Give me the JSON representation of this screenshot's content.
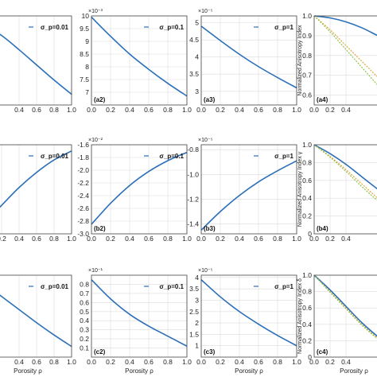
{
  "chart_data": [
    {
      "id": "a1",
      "type": "line",
      "label": "",
      "legend": "σ_p=0.01",
      "multiplier": "",
      "xlabel": "",
      "ylabel": "",
      "xlim": [
        0,
        1
      ],
      "ylim": [
        0,
        1
      ],
      "xticks": [
        "0.4",
        "0.6",
        "0.8",
        "1.0"
      ],
      "yticks": [],
      "series": [
        {
          "color": "#2a6fb8",
          "x": [
            0,
            0.2,
            0.4,
            0.6,
            0.8,
            1.0
          ],
          "y": [
            0.9,
            0.78,
            0.62,
            0.45,
            0.28,
            0.12
          ]
        }
      ]
    },
    {
      "id": "a2",
      "type": "line",
      "label": "(a2)",
      "legend": "σ_p=0.1",
      "multiplier": "×10⁻³",
      "xlabel": "",
      "ylabel": "",
      "xlim": [
        0,
        1
      ],
      "ylim": [
        6.5,
        10
      ],
      "xticks": [
        "0.0",
        "0.2",
        "0.4",
        "0.6",
        "0.8",
        "1.0"
      ],
      "yticks": [
        "7",
        "7.5",
        "8",
        "8.5",
        "9",
        "9.5",
        "10"
      ],
      "series": [
        {
          "color": "#2a6fb8",
          "x": [
            0,
            0.2,
            0.4,
            0.6,
            0.8,
            1.0
          ],
          "y": [
            9.95,
            9.2,
            8.5,
            7.9,
            7.35,
            6.85
          ]
        }
      ]
    },
    {
      "id": "a3",
      "type": "line",
      "label": "(a3)",
      "legend": "σ_p=1",
      "multiplier": "×10⁻⁵",
      "xlabel": "",
      "ylabel": "",
      "xlim": [
        0,
        1
      ],
      "ylim": [
        2.6,
        5.2
      ],
      "xticks": [
        "0.0",
        "0.2",
        "0.4",
        "0.6",
        "0.8",
        "1.0"
      ],
      "yticks": [
        "3",
        "3.5",
        "4",
        "4.5",
        "5"
      ],
      "series": [
        {
          "color": "#2a6fb8",
          "x": [
            0,
            0.2,
            0.4,
            0.6,
            0.8,
            1.0
          ],
          "y": [
            4.9,
            4.48,
            4.08,
            3.72,
            3.4,
            3.1
          ]
        }
      ]
    },
    {
      "id": "a4",
      "type": "line",
      "label": "(a4)",
      "legend": "",
      "multiplier": "",
      "xlabel": "",
      "ylabel": "Normalized Anisotropy Index",
      "xlim": [
        0,
        1
      ],
      "ylim": [
        0.55,
        1.0
      ],
      "xticks": [
        "0.0",
        "0.2",
        "0.4"
      ],
      "yticks": [
        "0.6",
        "0.7",
        "0.8",
        "0.9",
        "1.0"
      ],
      "series": [
        {
          "color": "#2a6fb8",
          "x": [
            0,
            0.2,
            0.4,
            0.6,
            0.8,
            1.0
          ],
          "y": [
            1.0,
            0.99,
            0.97,
            0.94,
            0.9,
            0.86
          ]
        },
        {
          "color": "#e0a030",
          "x": [
            0,
            0.2,
            0.4,
            0.6,
            0.8,
            1.0
          ],
          "y": [
            1.0,
            0.93,
            0.85,
            0.77,
            0.69,
            0.61
          ]
        },
        {
          "color": "#8ac040",
          "x": [
            0,
            0.2,
            0.4,
            0.6,
            0.8,
            1.0
          ],
          "y": [
            1.0,
            0.92,
            0.83,
            0.74,
            0.65,
            0.57
          ]
        }
      ]
    },
    {
      "id": "b1",
      "type": "line",
      "label": "",
      "legend": "σ_p=0.01",
      "multiplier": "",
      "xlabel": "",
      "ylabel": "",
      "xlim": [
        0,
        1
      ],
      "ylim": [
        0,
        1
      ],
      "xticks": [
        "0.2",
        "0.4",
        "0.6",
        "0.8",
        "1.0"
      ],
      "yticks": [],
      "series": [
        {
          "color": "#2a6fb8",
          "x": [
            0,
            0.2,
            0.4,
            0.6,
            0.8,
            1.0
          ],
          "y": [
            0.12,
            0.32,
            0.52,
            0.69,
            0.83,
            0.93
          ]
        }
      ]
    },
    {
      "id": "b2",
      "type": "line",
      "label": "(b2)",
      "legend": "σ_p=0.1",
      "multiplier": "×10⁻²",
      "xlabel": "",
      "ylabel": "",
      "xlim": [
        0,
        1
      ],
      "ylim": [
        -3.0,
        -1.6
      ],
      "xticks": [
        "0.0",
        "0.2",
        "0.4",
        "0.6",
        "0.8",
        "1.0"
      ],
      "yticks": [
        "-3.0",
        "-2.8",
        "-2.6",
        "-2.4",
        "-2.2",
        "-2.0",
        "-1.8",
        "-1.6"
      ],
      "series": [
        {
          "color": "#2a6fb8",
          "x": [
            0,
            0.2,
            0.4,
            0.6,
            0.8,
            1.0
          ],
          "y": [
            -2.85,
            -2.52,
            -2.24,
            -2.02,
            -1.85,
            -1.72
          ]
        }
      ]
    },
    {
      "id": "b3",
      "type": "line",
      "label": "(b3)",
      "legend": "σ_p=1",
      "multiplier": "×10⁻⁵",
      "xlabel": "",
      "ylabel": "",
      "xlim": [
        0,
        1
      ],
      "ylim": [
        -1.48,
        -0.76
      ],
      "xticks": [
        "0.0",
        "0.2",
        "0.4",
        "0.6",
        "0.8",
        "1.0"
      ],
      "yticks": [
        "-1.4",
        "-1.2",
        "-1.0",
        "-0.8"
      ],
      "series": [
        {
          "color": "#2a6fb8",
          "x": [
            0,
            0.2,
            0.4,
            0.6,
            0.8,
            1.0
          ],
          "y": [
            -1.45,
            -1.3,
            -1.17,
            -1.06,
            -0.97,
            -0.89
          ]
        }
      ]
    },
    {
      "id": "b4",
      "type": "line",
      "label": "(b4)",
      "legend": "",
      "multiplier": "",
      "xlabel": "",
      "ylabel": "Normalized Anisotropy Index γ",
      "xlim": [
        0,
        1
      ],
      "ylim": [
        0,
        1.0
      ],
      "xticks": [
        "0.0",
        "0.2",
        "0.4"
      ],
      "yticks": [
        "0",
        "0.2",
        "0.4",
        "0.6",
        "0.8",
        "1.0"
      ],
      "series": [
        {
          "color": "#2a6fb8",
          "x": [
            0,
            0.2,
            0.4,
            0.6,
            0.8,
            1.0
          ],
          "y": [
            1.0,
            0.9,
            0.78,
            0.64,
            0.5,
            0.36
          ]
        },
        {
          "color": "#e0a030",
          "x": [
            0,
            0.2,
            0.4,
            0.6,
            0.8,
            1.0
          ],
          "y": [
            1.0,
            0.87,
            0.72,
            0.56,
            0.4,
            0.25
          ]
        },
        {
          "color": "#8ac040",
          "x": [
            0,
            0.2,
            0.4,
            0.6,
            0.8,
            1.0
          ],
          "y": [
            1.0,
            0.86,
            0.7,
            0.53,
            0.37,
            0.22
          ]
        }
      ]
    },
    {
      "id": "c1",
      "type": "line",
      "label": "",
      "legend": "σ_p=0.01",
      "multiplier": "",
      "xlabel": "Porosity ρ",
      "ylabel": "",
      "xlim": [
        0,
        1
      ],
      "ylim": [
        0,
        1
      ],
      "xticks": [
        "0.4",
        "0.6",
        "0.8",
        "1.0"
      ],
      "yticks": [],
      "series": [
        {
          "color": "#2a6fb8",
          "x": [
            0,
            0.2,
            0.4,
            0.6,
            0.8,
            1.0
          ],
          "y": [
            0.9,
            0.74,
            0.58,
            0.42,
            0.27,
            0.13
          ]
        }
      ]
    },
    {
      "id": "c2",
      "type": "line",
      "label": "(c2)",
      "legend": "σ_p=0.1",
      "multiplier": "×10⁻¹",
      "xlabel": "Porosity ρ",
      "ylabel": "",
      "xlim": [
        0,
        1
      ],
      "ylim": [
        0.0,
        0.9
      ],
      "xticks": [
        "0.0",
        "0.2",
        "0.4",
        "0.6",
        "0.8",
        "1.0"
      ],
      "yticks": [
        "0.1",
        "0.2",
        "0.3",
        "0.4",
        "0.5",
        "0.6",
        "0.7",
        "0.8"
      ],
      "series": [
        {
          "color": "#2a6fb8",
          "x": [
            0,
            0.2,
            0.4,
            0.6,
            0.8,
            1.0
          ],
          "y": [
            0.85,
            0.64,
            0.47,
            0.34,
            0.23,
            0.12
          ]
        }
      ]
    },
    {
      "id": "c3",
      "type": "line",
      "label": "(c3)",
      "legend": "σ_p=1",
      "multiplier": "×10⁻⁵",
      "xlabel": "Porosity ρ",
      "ylabel": "",
      "xlim": [
        0,
        1
      ],
      "ylim": [
        0.5,
        4.1
      ],
      "xticks": [
        "0.0",
        "0.2",
        "0.4",
        "0.6",
        "0.8",
        "1.0"
      ],
      "yticks": [
        "1",
        "1.5",
        "2",
        "2.5",
        "3",
        "3.5",
        "4"
      ],
      "series": [
        {
          "color": "#2a6fb8",
          "x": [
            0,
            0.2,
            0.4,
            0.6,
            0.8,
            1.0
          ],
          "y": [
            3.9,
            3.15,
            2.5,
            1.95,
            1.45,
            1.0
          ]
        }
      ]
    },
    {
      "id": "c4",
      "type": "line",
      "label": "(c4)",
      "legend": "",
      "multiplier": "",
      "xlabel": "Porosity ρ",
      "ylabel": "Normalized Anisotropy Index δ",
      "xlim": [
        0,
        1
      ],
      "ylim": [
        0,
        1.0
      ],
      "xticks": [
        "0.0",
        "0.2",
        "0.4"
      ],
      "yticks": [
        "0",
        "0.2",
        "0.4",
        "0.6",
        "0.8",
        "1.0"
      ],
      "series": [
        {
          "color": "#2a6fb8",
          "x": [
            0,
            0.2,
            0.4,
            0.6,
            0.8,
            1.0
          ],
          "y": [
            1.0,
            0.82,
            0.62,
            0.42,
            0.25,
            0.1
          ]
        },
        {
          "color": "#e0a030",
          "x": [
            0,
            0.2,
            0.4,
            0.6,
            0.8,
            1.0
          ],
          "y": [
            1.0,
            0.8,
            0.6,
            0.4,
            0.23,
            0.08
          ]
        },
        {
          "color": "#8ac040",
          "x": [
            0,
            0.2,
            0.4,
            0.6,
            0.8,
            1.0
          ],
          "y": [
            1.0,
            0.79,
            0.59,
            0.39,
            0.22,
            0.07
          ]
        }
      ]
    }
  ]
}
